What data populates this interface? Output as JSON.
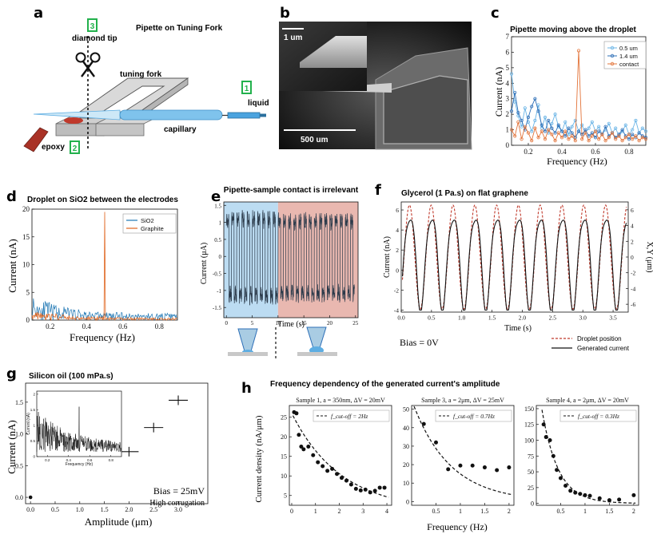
{
  "figure": {
    "panel_letters": [
      "a",
      "b",
      "c",
      "d",
      "e",
      "f",
      "g",
      "h"
    ]
  },
  "panel_a": {
    "title": "Pipette on Tuning Fork",
    "labels": {
      "diamond_tip": "diamond tip",
      "tuning_fork": "tuning fork",
      "liquid": "liquid",
      "epoxy": "epoxy",
      "capillary": "capillary"
    },
    "badges": [
      "3",
      "1",
      "2"
    ],
    "colors": {
      "badge": "#22b14c",
      "capillary": "#5dade2",
      "epoxy": "#b03020",
      "fork": "#d0d0d0"
    }
  },
  "panel_b": {
    "scale_small": "1 um",
    "scale_large": "500 um"
  },
  "chart_data": [
    {
      "id": "c",
      "type": "line",
      "title": "Pipette moving above the droplet",
      "xlabel": "Frequency (Hz)",
      "ylabel": "Current (nA)",
      "xlim": [
        0.1,
        0.9
      ],
      "ylim": [
        0,
        7
      ],
      "xticks": [
        0.2,
        0.4,
        0.6,
        0.8
      ],
      "yticks": [
        0,
        1,
        2,
        3,
        4,
        5,
        6,
        7
      ],
      "legend": "top-right",
      "series": [
        {
          "name": "0.5 um",
          "color": "#6ab4e6",
          "x": [
            0.1,
            0.12,
            0.14,
            0.16,
            0.18,
            0.2,
            0.22,
            0.24,
            0.26,
            0.28,
            0.3,
            0.32,
            0.34,
            0.36,
            0.38,
            0.4,
            0.42,
            0.44,
            0.46,
            0.48,
            0.5,
            0.52,
            0.54,
            0.56,
            0.58,
            0.6,
            0.62,
            0.64,
            0.66,
            0.68,
            0.7,
            0.72,
            0.74,
            0.76,
            0.78,
            0.8,
            0.82,
            0.84,
            0.86,
            0.88,
            0.9
          ],
          "y": [
            4.6,
            2.8,
            1.9,
            1.2,
            2.4,
            1.5,
            0.9,
            1.6,
            2.6,
            1.1,
            1.8,
            0.8,
            1.4,
            2.0,
            1.2,
            0.9,
            1.5,
            0.7,
            1.2,
            1.6,
            0.9,
            1.3,
            0.8,
            1.1,
            1.5,
            0.9,
            1.2,
            0.7,
            1.0,
            1.4,
            0.8,
            1.1,
            0.6,
            0.9,
            1.3,
            0.7,
            1.0,
            1.6,
            0.8,
            1.1,
            0.9
          ]
        },
        {
          "name": "1.4 um",
          "color": "#2e6fb7",
          "x": [
            0.1,
            0.12,
            0.14,
            0.16,
            0.18,
            0.2,
            0.22,
            0.24,
            0.26,
            0.28,
            0.3,
            0.32,
            0.34,
            0.36,
            0.38,
            0.4,
            0.42,
            0.44,
            0.46,
            0.48,
            0.5,
            0.52,
            0.54,
            0.56,
            0.58,
            0.6,
            0.62,
            0.64,
            0.66,
            0.68,
            0.7,
            0.72,
            0.74,
            0.76,
            0.78,
            0.8,
            0.82,
            0.84,
            0.86,
            0.88,
            0.9
          ],
          "y": [
            2.2,
            3.4,
            2.1,
            1.6,
            1.0,
            1.8,
            2.5,
            3.0,
            2.2,
            1.3,
            0.9,
            1.6,
            1.1,
            0.8,
            1.3,
            0.9,
            0.6,
            1.1,
            0.8,
            0.5,
            0.9,
            0.7,
            1.0,
            0.6,
            0.8,
            0.5,
            0.9,
            0.7,
            1.2,
            0.6,
            0.8,
            0.5,
            0.7,
            1.0,
            0.6,
            0.4,
            0.7,
            0.5,
            0.8,
            0.6,
            0.5
          ]
        },
        {
          "name": "contact",
          "color": "#e3743a",
          "x": [
            0.1,
            0.12,
            0.14,
            0.16,
            0.18,
            0.2,
            0.22,
            0.24,
            0.26,
            0.28,
            0.3,
            0.32,
            0.34,
            0.36,
            0.38,
            0.4,
            0.42,
            0.44,
            0.46,
            0.48,
            0.5,
            0.52,
            0.54,
            0.56,
            0.58,
            0.6,
            0.62,
            0.64,
            0.66,
            0.68,
            0.7,
            0.72,
            0.74,
            0.76,
            0.78,
            0.8,
            0.82,
            0.84,
            0.86,
            0.88,
            0.9
          ],
          "y": [
            1.0,
            0.6,
            1.5,
            0.4,
            1.2,
            0.8,
            0.3,
            1.1,
            0.5,
            0.9,
            0.4,
            1.0,
            0.7,
            0.3,
            0.8,
            0.5,
            0.9,
            0.4,
            0.6,
            0.3,
            6.1,
            0.4,
            0.8,
            0.3,
            0.6,
            0.9,
            0.4,
            0.7,
            0.3,
            0.5,
            0.8,
            0.4,
            0.6,
            0.3,
            0.5,
            0.7,
            0.4,
            0.6,
            0.3,
            0.5,
            0.4
          ]
        }
      ]
    },
    {
      "id": "d",
      "type": "line",
      "title": "Droplet on SiO2 between the electrodes",
      "xlabel": "Frequency (Hz)",
      "ylabel": "Current (nA)",
      "xlim": [
        0.1,
        0.9
      ],
      "ylim": [
        0,
        20
      ],
      "xticks": [
        0.2,
        0.4,
        0.6,
        0.8
      ],
      "yticks": [
        0,
        5,
        10,
        15,
        20
      ],
      "legend": "top-right",
      "series": [
        {
          "name": "SiO2",
          "color": "#1f77b4"
        },
        {
          "name": "Graphite",
          "color": "#e0651f",
          "peak_x": 0.5,
          "peak_y": 19.5
        }
      ]
    },
    {
      "id": "e",
      "type": "line",
      "title": "Pipette-sample contact is irrelevant",
      "xlabel": "Time (s)",
      "ylabel": "Current (μA)",
      "xlim": [
        -0.5,
        25.5
      ],
      "ylim": [
        -1.8,
        1.6
      ],
      "xticks": [
        0,
        5,
        10,
        15,
        20,
        25
      ],
      "yticks": [
        -1.5,
        -1,
        -0.5,
        0,
        0.5,
        1,
        1.5
      ],
      "ytick_labels": [
        "-1.5",
        "-1",
        "-0.5",
        "0",
        "0.5",
        "1",
        "1.5"
      ],
      "regions": [
        {
          "from": -0.5,
          "to": 10,
          "color": "#bcdcf2"
        },
        {
          "from": 10,
          "to": 25.5,
          "color": "#e9b8b0"
        }
      ],
      "series": [
        {
          "name": "current",
          "color": "#2b3a4a",
          "period": 1.0,
          "amplitude": 1.2
        }
      ]
    },
    {
      "id": "f",
      "type": "line",
      "title": "Glycerol (1 Pa.s) on flat graphene",
      "xlabel": "Time (s)",
      "ylabel": "Current (nA)",
      "y2label": "X,Y (μm)",
      "xlim": [
        0,
        3.75
      ],
      "ylim": [
        -4.2,
        6.8
      ],
      "y2lim": [
        -7,
        7
      ],
      "xticks": [
        0,
        0.5,
        1,
        1.5,
        2,
        2.5,
        3,
        3.5
      ],
      "xtick_labels": [
        "0.0",
        "0.5",
        "1.0",
        "1.5",
        "2.0",
        "2.5",
        "3.0",
        "3.5"
      ],
      "yticks": [
        -4,
        -2,
        0,
        2,
        4,
        6
      ],
      "y2ticks": [
        -6,
        -4,
        -2,
        0,
        2,
        4,
        6
      ],
      "legend": "bottom-right",
      "annotation": "Bias = 0V",
      "series": [
        {
          "name": "Droplet position",
          "color": "#c0392b",
          "style": "dashed"
        },
        {
          "name": "Generated current",
          "color": "#111111",
          "style": "solid"
        }
      ]
    },
    {
      "id": "g",
      "type": "scatter",
      "title": "Silicon oil (100 mPa.s)",
      "xlabel": "Amplitude (μm)",
      "ylabel": "Current (nA)",
      "xlim": [
        -0.1,
        3.6
      ],
      "ylim": [
        -0.1,
        1.8
      ],
      "xticks": [
        0,
        0.5,
        1,
        1.5,
        2,
        2.5,
        3
      ],
      "xtick_labels": [
        "0.0",
        "0.5",
        "1.0",
        "1.5",
        "2.0",
        "2.5",
        "3.0"
      ],
      "yticks": [
        0,
        0.5,
        1,
        1.5
      ],
      "ytick_labels": [
        "0.0",
        "0.5",
        "1.0",
        "1.5"
      ],
      "points": [
        {
          "x": 0,
          "y": 0
        },
        {
          "x": 2.0,
          "y": 0.72
        },
        {
          "x": 2.5,
          "y": 1.1
        },
        {
          "x": 3.0,
          "y": 1.53
        }
      ],
      "annotation": [
        "Bias = 25mV",
        "High corrugation"
      ],
      "inset": {
        "xlabel": "Frequency (Hz)",
        "ylabel": "Current (nA)",
        "xticks": [
          0.2,
          0.4,
          0.6,
          0.8
        ],
        "yticks": [
          0,
          0.5,
          1,
          1.5,
          2
        ],
        "spike_x": 0.5,
        "spike_y": 1.6
      }
    },
    {
      "id": "h",
      "type": "scatter",
      "title": "Frequency dependency of the generated current's amplitude",
      "ylabel": "Current density (nA/μm)",
      "xlabel": "Frequency (Hz)",
      "subplots": [
        {
          "title": "Sample 1, a = 350nm,  ΔV = 20mV",
          "fit_label": "f_cut-off = 2Hz",
          "xlim": [
            -0.1,
            4.2
          ],
          "ylim": [
            2.5,
            28
          ],
          "xticks": [
            0,
            1,
            2,
            3,
            4
          ],
          "yticks": [
            5,
            10,
            15,
            20,
            25
          ],
          "x": [
            0.1,
            0.2,
            0.3,
            0.4,
            0.5,
            0.7,
            0.9,
            1.1,
            1.3,
            1.5,
            1.7,
            1.9,
            2.1,
            2.3,
            2.5,
            2.7,
            2.9,
            3.1,
            3.3,
            3.5,
            3.7,
            3.9
          ],
          "y": [
            26.3,
            26.0,
            20.5,
            17.5,
            16.8,
            17.5,
            15.3,
            13.5,
            12.5,
            11.3,
            11.8,
            10.5,
            9.5,
            8.8,
            7.8,
            6.7,
            6.3,
            6.5,
            5.8,
            6.2,
            7.0,
            7.0
          ],
          "fit": {
            "a": 25.0,
            "b": -0.48,
            "c": 2.0
          }
        },
        {
          "title": "Sample 3, a = 2μm,  ΔV = 25mV",
          "fit_label": "f_cut-off = 0.7Hz",
          "xlim": [
            0,
            2.1
          ],
          "ylim": [
            -2,
            52
          ],
          "xticks": [
            0.5,
            1,
            1.5,
            2
          ],
          "yticks": [
            0,
            10,
            20,
            30,
            40,
            50
          ],
          "x": [
            0.25,
            0.5,
            0.75,
            1.0,
            1.25,
            1.5,
            1.75,
            2.0
          ],
          "y": [
            42,
            32,
            17.5,
            19.5,
            19.5,
            18.5,
            17,
            18.5
          ],
          "fit": {
            "a": 55.0,
            "b": -1.3,
            "c": 0
          }
        },
        {
          "title": "Sample 4, a = 2μm,  ΔV = 20mV",
          "fit_label": "f_cut-off = 0.3Hz",
          "xlim": [
            0,
            2.1
          ],
          "ylim": [
            -3,
            155
          ],
          "xticks": [
            0.5,
            1,
            1.5,
            2
          ],
          "yticks": [
            0,
            25,
            50,
            75,
            100,
            125,
            150
          ],
          "x": [
            0.15,
            0.2,
            0.28,
            0.35,
            0.42,
            0.5,
            0.6,
            0.7,
            0.8,
            0.9,
            1.0,
            1.1,
            1.3,
            1.5,
            1.7,
            2.0
          ],
          "y": [
            125,
            105,
            100,
            75,
            53,
            40,
            28,
            20,
            17,
            15,
            13,
            12,
            8,
            5,
            6,
            13
          ],
          "fit": {
            "a": 210.0,
            "b": -3.0,
            "c": 0
          }
        }
      ]
    }
  ]
}
